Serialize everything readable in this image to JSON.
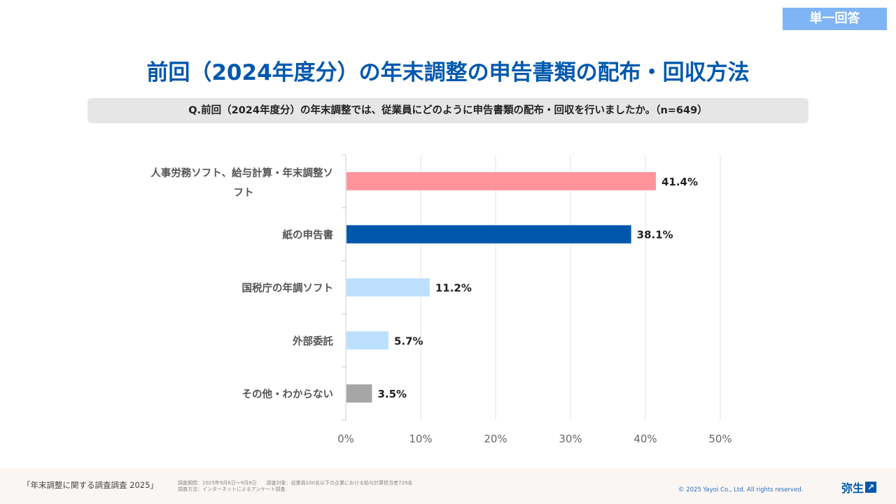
{
  "badge": "単一回答",
  "title": "前回（2024年度分）の年末調整の申告書類の配布・回収方法",
  "question": "Q.前回（2024年度分）の年末調整では、従業員にどのように申告書類の配布・回収を行いましたか。（n=649）",
  "chart_data": {
    "type": "bar",
    "orientation": "horizontal",
    "categories": [
      [
        "人事労務ソフト、給与計算・年末調整ソ",
        "フト"
      ],
      [
        "紙の申告書"
      ],
      [
        "国税庁の年調ソフト"
      ],
      [
        "外部委託"
      ],
      [
        "その他・わからない"
      ]
    ],
    "values": [
      41.4,
      38.1,
      11.2,
      5.7,
      3.5
    ],
    "data_labels": [
      "41.4%",
      "38.1%",
      "11.2%",
      "5.7%",
      "3.5%"
    ],
    "colors": [
      "#ff949c",
      "#0058ad",
      "#bde0fe",
      "#bde0fe",
      "#a6a6a6"
    ],
    "xlim": [
      0,
      50
    ],
    "xticks": [
      "0%",
      "10%",
      "20%",
      "30%",
      "40%",
      "50%"
    ],
    "grid": true
  },
  "footer": {
    "survey_title": "「年末調整に関する調査調査 2025」",
    "note_line1": "調査期間：2025年9月6日～9月8日　　調査対象：従業員100名以下の企業における給与計算担当者729名",
    "note_line2": "調査方法：インターネットによるアンケート調査",
    "copyright": "© 2025 Yayoi Co., Ltd.  All rights reserved.",
    "logo": "弥生"
  }
}
